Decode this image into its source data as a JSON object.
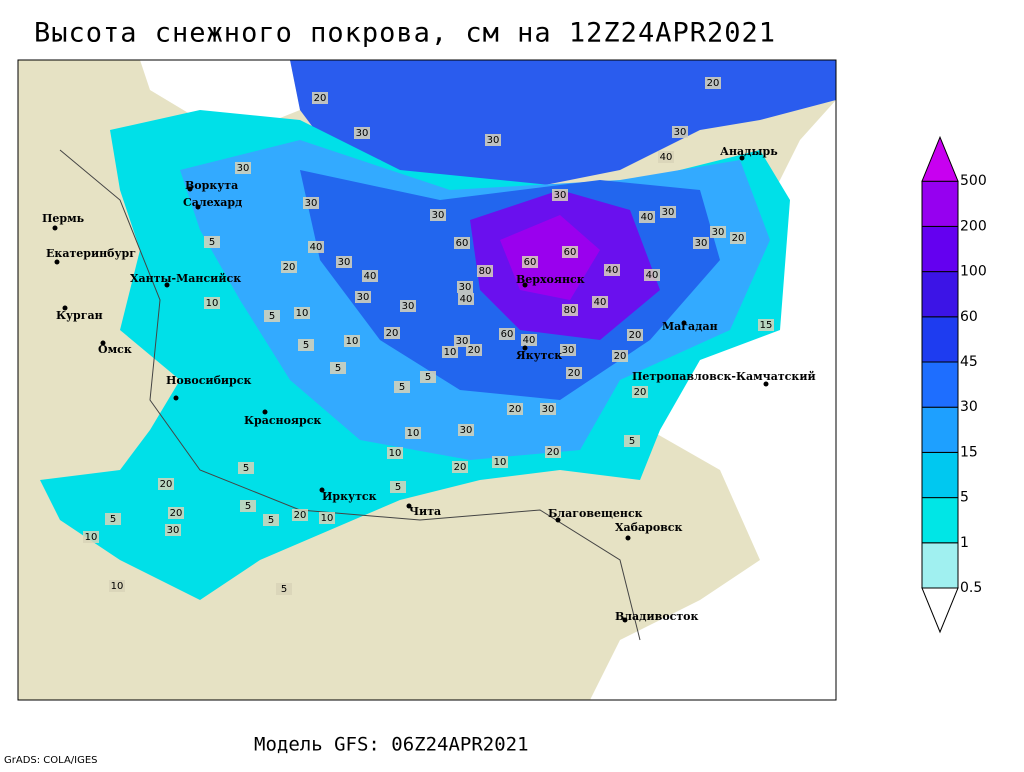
{
  "header": {
    "title": "Высота снежного покрова, см на 12Z24APR2021"
  },
  "map": {
    "cities": [
      "Воркута",
      "Салехард",
      "Пермь",
      "Екатеринбург",
      "Ханты-Мансийск",
      "Курган",
      "Омск",
      "Новосибирск",
      "Красноярск",
      "Иркутск",
      "Чита",
      "Благовещенск",
      "Хабаровск",
      "Владивосток",
      "Якутск",
      "Верхоянск",
      "Магадан",
      "Петропавловск-Камчатский",
      "Анадырь"
    ],
    "contour_labels": [
      20,
      30,
      30,
      20,
      30,
      40,
      30,
      30,
      30,
      30,
      60,
      40,
      30,
      30,
      30,
      20,
      5,
      40,
      30,
      40,
      20,
      80,
      60,
      60,
      40,
      40,
      30,
      40,
      30,
      30,
      40,
      80,
      10,
      5,
      10,
      20,
      60,
      40,
      10,
      30,
      20,
      10,
      5,
      20,
      20,
      15,
      30,
      5,
      5,
      5,
      20,
      20,
      20,
      30,
      10,
      30,
      5,
      10,
      20,
      10,
      20,
      5,
      20,
      5,
      20,
      5,
      10,
      5,
      20,
      30,
      5,
      10,
      10,
      5
    ]
  },
  "legend": {
    "levels": [
      0.5,
      1,
      5,
      15,
      30,
      45,
      60,
      100,
      200,
      500
    ],
    "colors": [
      "#ffffff",
      "#a0f0f0",
      "#00e6e6",
      "#00c8f0",
      "#1ea0ff",
      "#1e6eff",
      "#1e3cf0",
      "#3c14e6",
      "#6400f0",
      "#9600f0",
      "#c800f0"
    ]
  },
  "footer": {
    "model": "Модель GFS: 06Z24APR2021",
    "credit": "GrADS: COLA/IGES"
  }
}
